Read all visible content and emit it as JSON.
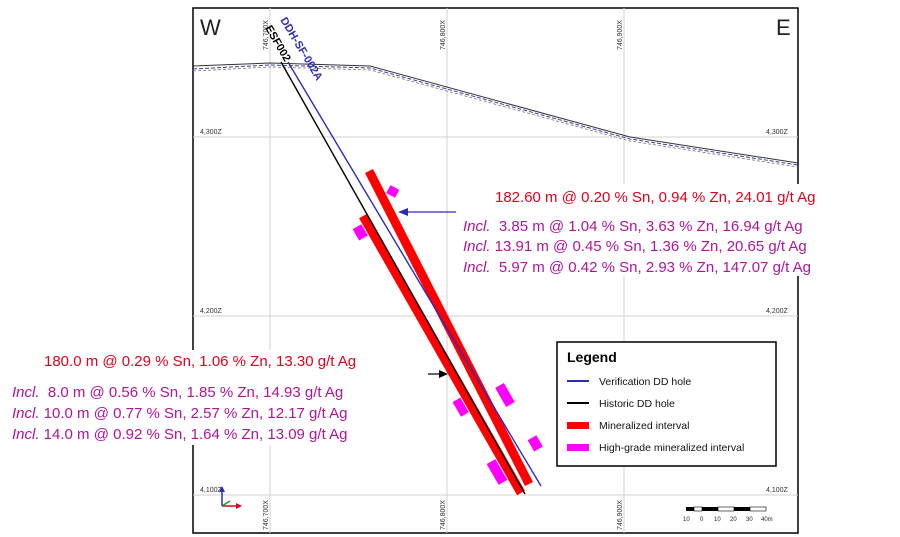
{
  "compass": {
    "west": "W",
    "east": "E"
  },
  "easting_labels": {
    "top": [
      "746,700X",
      "746,800X",
      "746,900X"
    ],
    "bottom": [
      "746,700X",
      "746,800X",
      "746,900X"
    ]
  },
  "elevation_labels": {
    "left": [
      "4,300Z",
      "4,200Z",
      "4,100Z"
    ],
    "right": [
      "4,300Z",
      "4,200Z",
      "4,100Z"
    ]
  },
  "holes": [
    {
      "name": "DDH-SF-002A",
      "type": "verification",
      "color": "#2b2bbd"
    },
    {
      "name": "ESF002",
      "type": "historic",
      "color": "#000000"
    }
  ],
  "annotations": {
    "upper": {
      "main": "182.60 m @ 0.20 % Sn, 0.94 % Zn, 24.01 g/t Ag",
      "includes": [
        {
          "prefix": "Incl.",
          "text": "  3.85 m @ 1.04 % Sn, 3.63 % Zn, 16.94 g/t Ag"
        },
        {
          "prefix": "Incl.",
          "text": " 13.91 m @ 0.45 % Sn, 1.36 % Zn, 20.65 g/t Ag"
        },
        {
          "prefix": "Incl.",
          "text": "  5.97 m @ 0.42 % Sn, 2.93 % Zn, 147.07 g/t Ag"
        }
      ]
    },
    "lower": {
      "main": "180.0 m @ 0.29 % Sn, 1.06 % Zn, 13.30 g/t Ag",
      "includes": [
        {
          "prefix": "Incl.",
          "text": "  8.0 m @ 0.56 % Sn, 1.85 % Zn, 14.93 g/t Ag"
        },
        {
          "prefix": "Incl.",
          "text": " 10.0 m @ 0.77 % Sn, 2.57 % Zn, 12.17 g/t Ag"
        },
        {
          "prefix": "Incl.",
          "text": " 14.0 m @ 0.92 % Sn, 1.64 % Zn, 13.09 g/t Ag"
        }
      ]
    }
  },
  "legend": {
    "title": "Legend",
    "items": [
      {
        "label": "Verification DD hole",
        "color": "#2b2bbd",
        "symbol": "line"
      },
      {
        "label": "Historic DD hole",
        "color": "#000000",
        "symbol": "line"
      },
      {
        "label": "Mineralized interval",
        "color": "#ff0000",
        "symbol": "bar"
      },
      {
        "label": "High-grade mineralized interval",
        "color": "#ff00ff",
        "symbol": "bar"
      }
    ]
  },
  "scale_bar": {
    "labels": [
      "10",
      "0",
      "10",
      "20",
      "30",
      "40m"
    ]
  },
  "colors": {
    "mineralized": "#ff0000",
    "high_grade": "#ff00ff",
    "annotation_main": "#e2001a",
    "annotation_incl": "#b0149b"
  },
  "axis_icon": "xyz-axis-icon"
}
